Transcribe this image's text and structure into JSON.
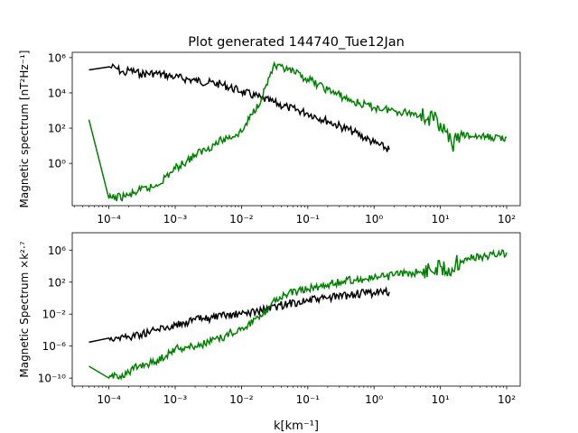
{
  "figure": {
    "title": "Plot generated 144740_Tue12Jan",
    "xlabel": "k[km⁻¹]"
  },
  "colors": {
    "black_series": "#000000",
    "green_series": "#008000"
  },
  "chart_data": [
    {
      "type": "line",
      "title": "Plot generated 144740_Tue12Jan",
      "ylabel": "Magnetic spectrum [nT²Hz⁻¹]",
      "xscale": "log",
      "yscale": "log",
      "xlim": [
        2.8e-05,
        160
      ],
      "ylim": [
        0.004,
        2000000
      ],
      "xticks": [
        0.0001,
        0.001,
        0.01,
        0.1,
        1,
        10,
        100
      ],
      "xtick_labels": [
        "10⁻⁴",
        "10⁻³",
        "10⁻²",
        "10⁻¹",
        "10⁰",
        "10¹",
        "10²"
      ],
      "yticks": [
        1,
        100,
        10000,
        1000000
      ],
      "ytick_labels": [
        "10⁰",
        "10²",
        "10⁴",
        "10⁶"
      ],
      "series": [
        {
          "color": "#000000",
          "x": [
            5e-05,
            0.0001,
            0.00013,
            0.00017,
            0.0002,
            0.0003,
            0.0005,
            0.001,
            0.002,
            0.005,
            0.01,
            0.02,
            0.05,
            0.1,
            0.2,
            0.5,
            1,
            1.7
          ],
          "y": [
            200000,
            300000,
            250000,
            120000,
            200000,
            120000,
            130000,
            80000,
            50000,
            30000,
            12000,
            5000,
            1500,
            700,
            250,
            60,
            15,
            6
          ]
        },
        {
          "color": "#008000",
          "x": [
            5e-05,
            0.0001,
            0.0002,
            0.0003,
            0.0005,
            0.001,
            0.002,
            0.005,
            0.01,
            0.02,
            0.03,
            0.05,
            0.1,
            0.2,
            0.5,
            1,
            2,
            5,
            10,
            15,
            20,
            50,
            100
          ],
          "y": [
            300,
            0.01,
            0.015,
            0.03,
            0.05,
            0.5,
            3,
            20,
            60,
            5000,
            300000,
            200000,
            60000,
            15000,
            3000,
            1500,
            1000,
            600,
            200,
            10,
            40,
            30,
            30
          ]
        }
      ]
    },
    {
      "type": "line",
      "ylabel": "Magnetic Spectrum ×k²·⁷",
      "xscale": "log",
      "yscale": "log",
      "xlim": [
        2.8e-05,
        160
      ],
      "ylim": [
        1e-11,
        150000000
      ],
      "xticks": [
        0.0001,
        0.001,
        0.01,
        0.1,
        1,
        10,
        100
      ],
      "xtick_labels": [
        "10⁻⁴",
        "10⁻³",
        "10⁻²",
        "10⁻¹",
        "10⁰",
        "10¹",
        "10²"
      ],
      "yticks": [
        1e-10,
        1e-06,
        0.01,
        100,
        1000000
      ],
      "ytick_labels": [
        "10⁻¹⁰",
        "10⁻⁶",
        "10⁻²",
        "10²",
        "10⁶"
      ],
      "series": [
        {
          "color": "#000000",
          "x": [
            5e-05,
            0.0001,
            0.0002,
            0.0003,
            0.0005,
            0.001,
            0.002,
            0.005,
            0.01,
            0.02,
            0.05,
            0.1,
            0.2,
            0.5,
            1,
            1.7
          ],
          "y": [
            3e-06,
            1e-05,
            1.5e-05,
            3e-05,
            0.0001,
            0.0004,
            0.002,
            0.005,
            0.01,
            0.03,
            0.2,
            0.5,
            1,
            3,
            5,
            6
          ]
        },
        {
          "color": "#008000",
          "x": [
            5e-05,
            0.0001,
            0.0002,
            0.0003,
            0.0005,
            0.001,
            0.002,
            0.005,
            0.01,
            0.02,
            0.03,
            0.05,
            0.1,
            0.2,
            0.5,
            1,
            2,
            5,
            10,
            15,
            20,
            50,
            100
          ],
          "y": [
            3e-09,
            1e-10,
            5e-10,
            5e-09,
            1e-08,
            5e-07,
            1e-06,
            1e-05,
            0.0002,
            0.005,
            0.5,
            3,
            15,
            50,
            200,
            300,
            700,
            2000,
            10000,
            5000,
            50000,
            200000,
            500000
          ]
        }
      ]
    }
  ]
}
